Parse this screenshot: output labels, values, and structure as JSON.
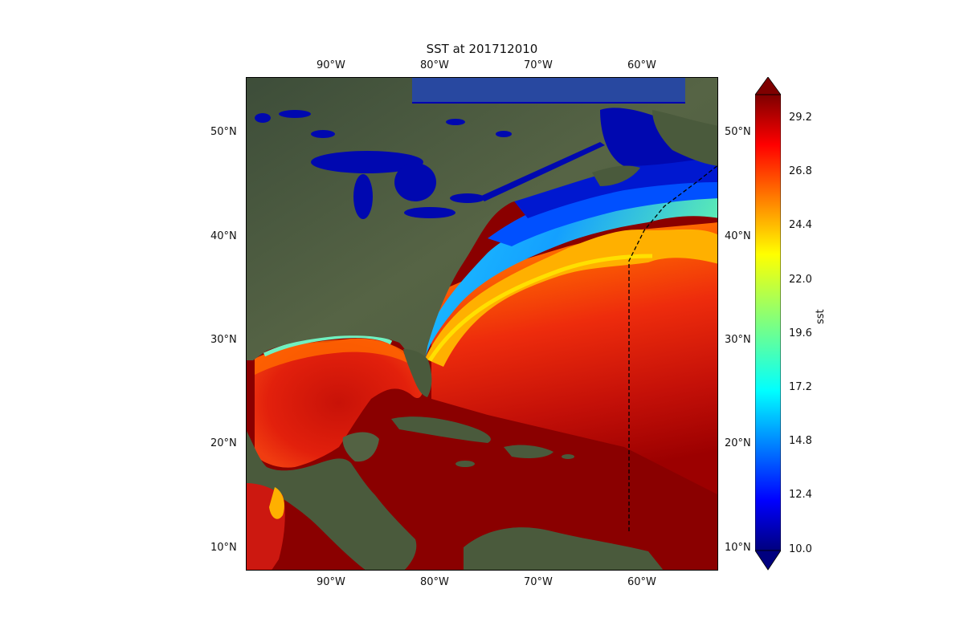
{
  "title": "SST at 201712010",
  "lon_ticks_top": [
    "90°W",
    "80°W",
    "70°W",
    "60°W"
  ],
  "lon_ticks_bottom": [
    "90°W",
    "80°W",
    "70°W",
    "60°W"
  ],
  "lat_ticks_left": [
    "50°N",
    "40°N",
    "30°N",
    "20°N",
    "10°N"
  ],
  "lat_ticks_right": [
    "50°N",
    "40°N",
    "30°N",
    "20°N",
    "10°N"
  ],
  "colorbar": {
    "label": "sst",
    "ticks": [
      "29.2",
      "26.8",
      "24.4",
      "22.0",
      "19.6",
      "17.2",
      "14.8",
      "12.4",
      "10.0"
    ],
    "min": 10.0,
    "max": 30.0,
    "extend": "both",
    "colormap": "jet"
  },
  "colors": {
    "land": "#4a5a3e",
    "cold_water": "#0010b8",
    "warm_water": "#e82010",
    "hot_water": "#8a0000",
    "track_line": "#000000"
  },
  "map": {
    "projection": "PlateCarree",
    "lon_range": [
      -98,
      -53
    ],
    "lat_range": [
      8,
      55
    ],
    "track_style": "dashed"
  }
}
